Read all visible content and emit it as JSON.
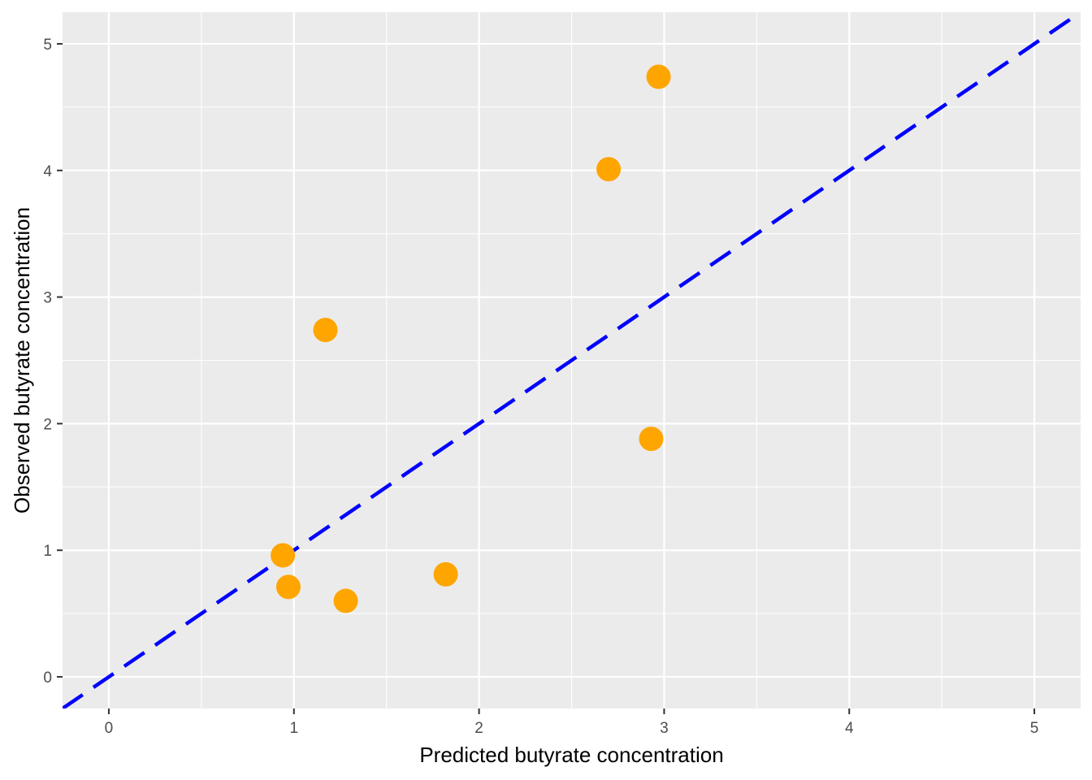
{
  "chart_data": {
    "type": "scatter",
    "title": "",
    "xlabel": "Predicted butyrate concentration",
    "ylabel": "Observed butyrate concentration",
    "xlim": [
      -0.25,
      5.25
    ],
    "ylim": [
      -0.25,
      5.25
    ],
    "x_ticks": [
      0,
      1,
      2,
      3,
      4,
      5
    ],
    "y_ticks": [
      0,
      1,
      2,
      3,
      4,
      5
    ],
    "x_tick_labels": [
      "0",
      "1",
      "2",
      "3",
      "4",
      "5"
    ],
    "y_tick_labels": [
      "0",
      "1",
      "2",
      "3",
      "4",
      "5"
    ],
    "grid": true,
    "legend": "none",
    "colors": {
      "panel_background": "#ebebeb",
      "grid": "#ffffff",
      "points": "#ffa500",
      "reference_line": "#0000ff"
    },
    "reference_line": {
      "type": "identity",
      "slope": 1,
      "intercept": 0,
      "style": "dashed"
    },
    "points": [
      {
        "x": 0.94,
        "y": 0.96
      },
      {
        "x": 0.97,
        "y": 0.71
      },
      {
        "x": 1.17,
        "y": 2.74
      },
      {
        "x": 1.28,
        "y": 0.6
      },
      {
        "x": 1.82,
        "y": 0.81
      },
      {
        "x": 2.7,
        "y": 4.01
      },
      {
        "x": 2.93,
        "y": 1.88
      },
      {
        "x": 2.97,
        "y": 4.74
      }
    ]
  }
}
